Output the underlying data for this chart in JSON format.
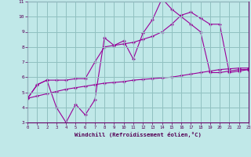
{
  "bg_color": "#c0e8e8",
  "grid_color": "#90c0c0",
  "line_color": "#990099",
  "xlabel": "Windchill (Refroidissement éolien,°C)",
  "xlim": [
    0,
    23
  ],
  "ylim": [
    3,
    11
  ],
  "xticks": [
    0,
    1,
    2,
    3,
    4,
    5,
    6,
    7,
    8,
    9,
    10,
    11,
    12,
    13,
    14,
    15,
    16,
    17,
    18,
    19,
    20,
    21,
    22,
    23
  ],
  "yticks": [
    3,
    4,
    5,
    6,
    7,
    8,
    9,
    10,
    11
  ],
  "line1_x": [
    0,
    1,
    2,
    3,
    4,
    5,
    6,
    7,
    8,
    9,
    10,
    11,
    12,
    13,
    14,
    15,
    16,
    17,
    18,
    19,
    20,
    21,
    22,
    23
  ],
  "line1_y": [
    4.6,
    5.5,
    5.8,
    4.0,
    3.0,
    4.2,
    3.5,
    4.5,
    8.6,
    8.1,
    8.4,
    7.2,
    8.9,
    9.8,
    11.2,
    10.5,
    10.0,
    9.5,
    9.0,
    6.3,
    6.3,
    6.4,
    6.5,
    6.5
  ],
  "line2_x": [
    0,
    1,
    2,
    3,
    4,
    5,
    6,
    7,
    8,
    9,
    10,
    11,
    12,
    13,
    14,
    15,
    16,
    17,
    18,
    19,
    20,
    21,
    22,
    23
  ],
  "line2_y": [
    4.6,
    5.5,
    5.8,
    5.8,
    5.8,
    5.9,
    5.9,
    7.0,
    8.0,
    8.1,
    8.2,
    8.3,
    8.5,
    8.7,
    9.0,
    9.5,
    10.1,
    10.3,
    9.9,
    9.5,
    9.5,
    6.3,
    6.4,
    6.5
  ],
  "line3_x": [
    0,
    1,
    2,
    3,
    4,
    5,
    6,
    7,
    8,
    9,
    10,
    11,
    12,
    13,
    14,
    15,
    16,
    17,
    18,
    19,
    20,
    21,
    22,
    23
  ],
  "line3_y": [
    4.6,
    4.75,
    4.9,
    5.05,
    5.2,
    5.3,
    5.4,
    5.5,
    5.6,
    5.65,
    5.7,
    5.8,
    5.85,
    5.9,
    5.95,
    6.0,
    6.1,
    6.2,
    6.3,
    6.4,
    6.5,
    6.55,
    6.6,
    6.6
  ]
}
